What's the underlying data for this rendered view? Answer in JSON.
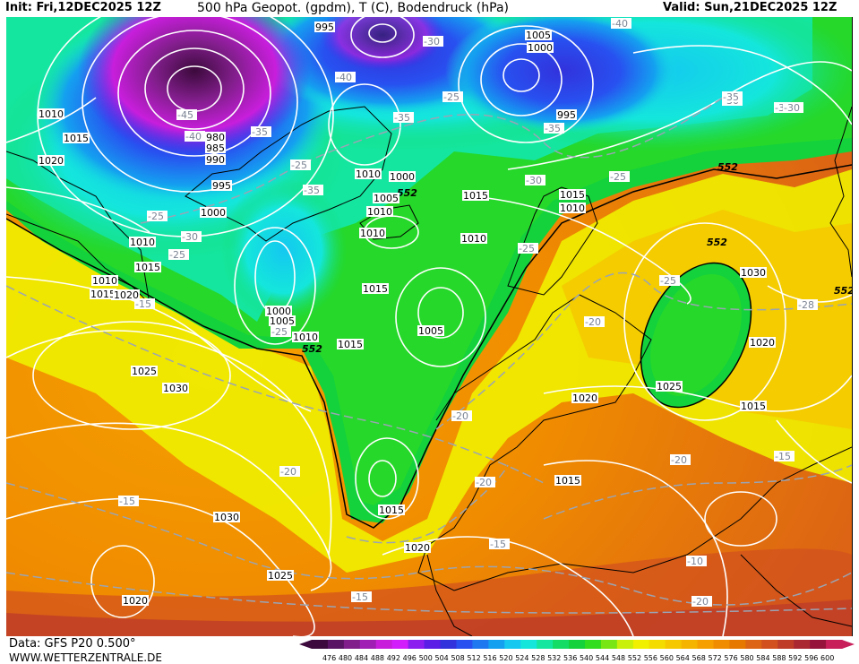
{
  "header": {
    "init": "Init: Fri,12DEC2025 12Z",
    "title": "500 hPa Geopot. (gpdm), T (C), Bodendruck (hPa)",
    "valid": "Valid: Sun,21DEC2025 12Z"
  },
  "footer": {
    "source": "Data: GFS P20 0.500°",
    "website": "WWW.WETTERZENTRALE.DE"
  },
  "colorbar": {
    "ticks": [
      "476",
      "480",
      "484",
      "488",
      "492",
      "496",
      "500",
      "504",
      "508",
      "512",
      "516",
      "520",
      "524",
      "528",
      "532",
      "536",
      "540",
      "544",
      "548",
      "552",
      "556",
      "560",
      "564",
      "568",
      "572",
      "576",
      "580",
      "584",
      "588",
      "592",
      "596",
      "600"
    ],
    "colors": [
      "#3c0a3c",
      "#5a1464",
      "#821e8c",
      "#a01eb4",
      "#c81edc",
      "#d21efa",
      "#8c1ef0",
      "#5a1ee6",
      "#3232dc",
      "#2850f0",
      "#1e78f0",
      "#14a0f0",
      "#14c8f0",
      "#14e6dc",
      "#14e6a0",
      "#14dc64",
      "#14d23c",
      "#32dc1e",
      "#78e614",
      "#c8f00a",
      "#f0f000",
      "#f5dc00",
      "#f5c800",
      "#f5b400",
      "#f5a000",
      "#f08c00",
      "#e67800",
      "#dc6414",
      "#d2501e",
      "#be3c28",
      "#aa2832",
      "#96143c",
      "#c81e5a"
    ]
  },
  "map": {
    "geopotential_contour_labels": [
      "552",
      "552",
      "552",
      "552",
      "552"
    ],
    "pressure_labels": [
      "995",
      "1005",
      "1000",
      "1010",
      "1015",
      "1020",
      "1010",
      "1015",
      "1025",
      "980",
      "985",
      "990",
      "995",
      "1000",
      "1010",
      "1015",
      "1020",
      "1025",
      "1030",
      "1010",
      "1000",
      "1005",
      "1010",
      "1000",
      "1005",
      "1010",
      "1015",
      "1010",
      "1015",
      "1005",
      "1015",
      "1010",
      "1015",
      "995",
      "1030",
      "1020",
      "1025",
      "1015",
      "1020",
      "1030",
      "1025",
      "1020",
      "1015",
      "1020",
      "1015",
      "1010"
    ],
    "temperature_labels": [
      "-40",
      "-30",
      "-45",
      "-40",
      "-40",
      "-35",
      "-35",
      "-25",
      "-35",
      "-30",
      "-30",
      "-25",
      "-35",
      "-30",
      "-25",
      "-30",
      "-25",
      "-25",
      "-25",
      "-20",
      "-25",
      "-28",
      "-25",
      "-20",
      "-20",
      "-20",
      "-15",
      "-20",
      "-15",
      "-15",
      "-15",
      "-10",
      "-20",
      "-15",
      "-30",
      "-35"
    ]
  }
}
